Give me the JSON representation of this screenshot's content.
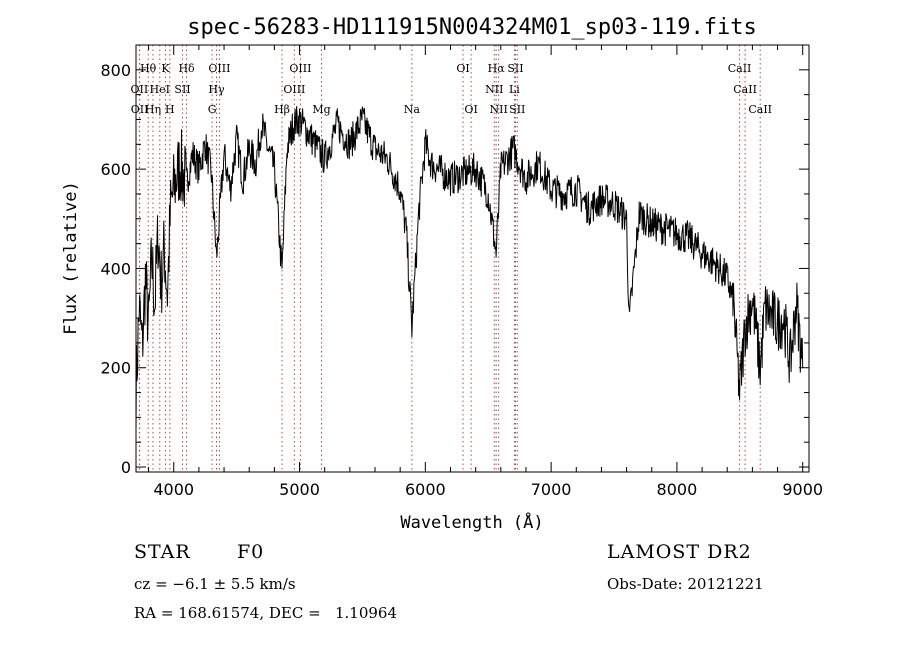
{
  "chart_data": {
    "type": "line",
    "title": "spec-56283-HD111915N004324M01_sp03-119.fits",
    "xlabel": "Wavelength (Å)",
    "ylabel": "Flux (relative)",
    "xlim": [
      3700,
      9050
    ],
    "ylim": [
      -10,
      850
    ],
    "x_ticks": [
      4000,
      5000,
      6000,
      7000,
      8000,
      9000
    ],
    "y_ticks": [
      0,
      200,
      400,
      600,
      800
    ],
    "series": [
      {
        "line_color": "#000000",
        "x": [
          3700,
          3725,
          3750,
          3775,
          3800,
          3825,
          3850,
          3875,
          3900,
          3925,
          3950,
          3975,
          4000,
          4050,
          4100,
          4150,
          4200,
          4250,
          4300,
          4340,
          4400,
          4450,
          4500,
          4550,
          4600,
          4650,
          4700,
          4750,
          4800,
          4861,
          4900,
          4950,
          5000,
          5100,
          5200,
          5300,
          5400,
          5500,
          5600,
          5700,
          5800,
          5850,
          5893,
          5950,
          6000,
          6050,
          6100,
          6200,
          6300,
          6400,
          6500,
          6563,
          6600,
          6700,
          6800,
          6900,
          7000,
          7100,
          7200,
          7300,
          7400,
          7500,
          7600,
          7620,
          7700,
          7800,
          7900,
          8000,
          8100,
          8200,
          8300,
          8400,
          8450,
          8498,
          8542,
          8600,
          8662,
          8700,
          8800,
          8850,
          8900,
          8950,
          9000
        ],
        "y": [
          150,
          320,
          240,
          380,
          280,
          420,
          330,
          470,
          370,
          440,
          350,
          520,
          560,
          610,
          570,
          630,
          600,
          650,
          590,
          420,
          630,
          560,
          660,
          580,
          640,
          610,
          690,
          640,
          600,
          390,
          640,
          690,
          700,
          660,
          620,
          690,
          650,
          700,
          640,
          620,
          560,
          470,
          280,
          520,
          650,
          610,
          600,
          580,
          590,
          600,
          550,
          430,
          600,
          640,
          580,
          610,
          560,
          550,
          560,
          520,
          540,
          530,
          500,
          290,
          510,
          490,
          480,
          470,
          460,
          430,
          410,
          380,
          330,
          150,
          280,
          340,
          200,
          320,
          290,
          300,
          210,
          330,
          200
        ]
      }
    ],
    "line_markers": [
      {
        "label": "Hθ",
        "x": 3797,
        "row": 0,
        "color": "#a05050"
      },
      {
        "label": "K",
        "x": 3934,
        "row": 0,
        "color": "#a05050"
      },
      {
        "label": "Hδ",
        "x": 4102,
        "row": 0,
        "color": "#a05050"
      },
      {
        "label": "OIII",
        "x": 4363,
        "row": 0,
        "color": "#a05050"
      },
      {
        "label": "OIII",
        "x": 5007,
        "row": 0,
        "color": "#a05050"
      },
      {
        "label": "OI",
        "x": 6300,
        "row": 0,
        "color": "#a05050"
      },
      {
        "label": "Hα",
        "x": 6563,
        "row": 0,
        "color": "#a05050"
      },
      {
        "label": "SII",
        "x": 6717,
        "row": 0,
        "color": "#a05050"
      },
      {
        "label": "CaII",
        "x": 8498,
        "row": 0,
        "color": "#a05050"
      },
      {
        "label": "OII",
        "x": 3727,
        "row": 1,
        "color": "#a05050"
      },
      {
        "label": "HeI",
        "x": 3889,
        "row": 1,
        "color": "#a05050"
      },
      {
        "label": "SII",
        "x": 4070,
        "row": 1,
        "color": "#a05050"
      },
      {
        "label": "Hγ",
        "x": 4340,
        "row": 1,
        "color": "#a05050"
      },
      {
        "label": "OIII",
        "x": 4959,
        "row": 1,
        "color": "#a05050"
      },
      {
        "label": "NII",
        "x": 6548,
        "row": 1,
        "color": "#a05050"
      },
      {
        "label": "Li",
        "x": 6708,
        "row": 1,
        "color": "#a05050"
      },
      {
        "label": "CaII",
        "x": 8542,
        "row": 1,
        "color": "#a05050"
      },
      {
        "label": "OII",
        "x": 3729,
        "row": 2,
        "color": "#a05050"
      },
      {
        "label": "Hη",
        "x": 3835,
        "row": 2,
        "color": "#a05050"
      },
      {
        "label": "H",
        "x": 3969,
        "row": 2,
        "color": "#a05050"
      },
      {
        "label": "G",
        "x": 4305,
        "row": 2,
        "color": "#a05050"
      },
      {
        "label": "Hβ",
        "x": 4861,
        "row": 2,
        "color": "#a05050"
      },
      {
        "label": "Mg",
        "x": 5175,
        "row": 2,
        "color": "#a05050"
      },
      {
        "label": "Na",
        "x": 5893,
        "row": 2,
        "color": "#a05050"
      },
      {
        "label": "OI",
        "x": 6364,
        "row": 2,
        "color": "#a05050"
      },
      {
        "label": "NII",
        "x": 6583,
        "row": 2,
        "color": "#a05050"
      },
      {
        "label": "SII",
        "x": 6731,
        "row": 2,
        "color": "#a05050"
      },
      {
        "label": "CaII",
        "x": 8662,
        "row": 2,
        "color": "#a05050"
      }
    ]
  },
  "info": {
    "object_class": "STAR",
    "subclass": "F0",
    "survey": "LAMOST DR2",
    "cz": "cz = −6.1 ± 5.5 km/s",
    "obs_date": "Obs-Date: 20121221",
    "coords": "RA = 168.61574, DEC =   1.10964"
  }
}
